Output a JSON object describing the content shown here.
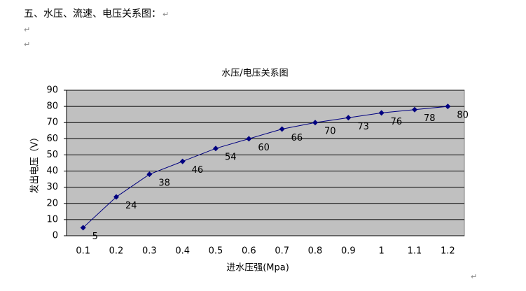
{
  "heading": "五、水压、流速、电压关系图：",
  "paragraph_mark": "↵",
  "chart_data": {
    "type": "line",
    "title": "水压/电压关系图",
    "x_label": "进水压强(Mpa)",
    "y_label": "发出电压（V）",
    "categories": [
      "0.1",
      "0.2",
      "0.3",
      "0.4",
      "0.5",
      "0.6",
      "0.7",
      "0.8",
      "0.9",
      "1",
      "1.1",
      "1.2"
    ],
    "values": [
      5,
      24,
      38,
      46,
      54,
      60,
      66,
      70,
      73,
      76,
      78,
      80
    ],
    "color": "#000080",
    "plot_background": "#c0c0c0",
    "ylim": [
      0,
      90
    ],
    "yticks": [
      0,
      10,
      20,
      30,
      40,
      50,
      60,
      70,
      80,
      90
    ],
    "grid": true
  }
}
